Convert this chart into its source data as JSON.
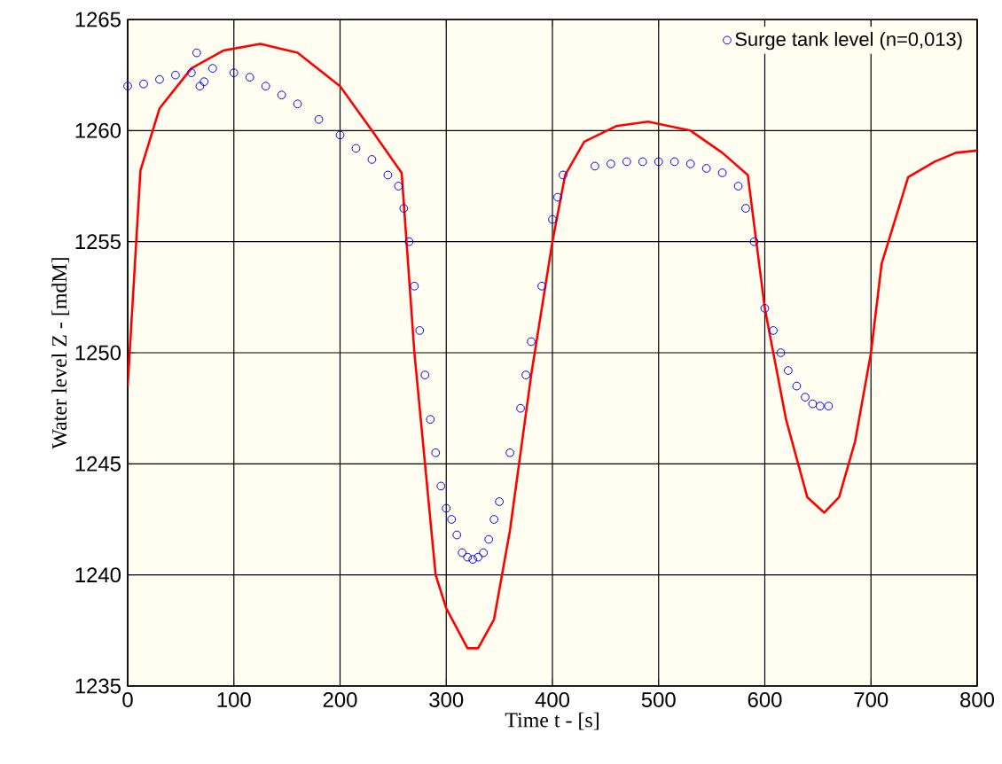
{
  "chart_data": {
    "type": "scatter",
    "xlabel": "Time t - [s]",
    "ylabel": "Water level Z - [mdM]",
    "xlim": [
      0,
      800
    ],
    "ylim": [
      1235,
      1265
    ],
    "xticks": [
      0,
      100,
      200,
      300,
      400,
      500,
      600,
      700,
      800
    ],
    "yticks": [
      1235,
      1240,
      1245,
      1250,
      1255,
      1260,
      1265
    ],
    "grid": true,
    "legend": "top right",
    "series": [
      {
        "type": "line",
        "marker": "none",
        "line_style": "solid",
        "color": "#ff0000",
        "x": [
          0,
          12,
          30,
          60,
          90,
          125,
          160,
          200,
          230,
          258,
          270,
          290,
          300,
          320,
          330,
          345,
          360,
          380,
          400,
          412,
          430,
          460,
          490,
          530,
          560,
          584,
          600,
          620,
          640,
          656,
          670,
          685,
          700,
          710,
          735,
          760,
          780,
          800
        ],
        "values": [
          1248.5,
          1258.2,
          1261,
          1262.8,
          1263.6,
          1263.9,
          1263.5,
          1262,
          1260,
          1258.1,
          1250,
          1240,
          1238.5,
          1236.7,
          1236.7,
          1238,
          1242,
          1249,
          1255,
          1258,
          1259.5,
          1260.2,
          1260.4,
          1260,
          1259,
          1258,
          1252,
          1247,
          1243.5,
          1242.8,
          1243.5,
          1246,
          1250,
          1254,
          1257.9,
          1258.6,
          1259,
          1259.1
        ]
      },
      {
        "marker": "circle",
        "name": "Surge tank level (n=0,013)",
        "color": "#0000ff",
        "x": [
          0,
          15,
          30,
          45,
          60,
          65,
          68,
          72,
          80,
          100,
          115,
          130,
          145,
          160,
          180,
          200,
          215,
          230,
          245,
          255,
          260,
          265,
          270,
          275,
          280,
          285,
          290,
          295,
          300,
          305,
          310,
          315,
          320,
          325,
          330,
          335,
          340,
          345,
          350,
          360,
          370,
          375,
          380,
          390,
          400,
          405,
          410,
          425,
          440,
          455,
          470,
          485,
          500,
          515,
          530,
          545,
          560,
          575,
          582,
          590,
          600,
          608,
          615,
          622,
          630,
          638,
          645,
          652,
          660
        ],
        "values": [
          1262,
          1262.1,
          1262.3,
          1262.5,
          1262.6,
          1263.5,
          1262,
          1262.2,
          1262.8,
          1262.6,
          1262.4,
          1262,
          1261.6,
          1261.2,
          1260.5,
          1259.8,
          1259.2,
          1258.7,
          1258,
          1257.5,
          1256.5,
          1255,
          1253,
          1251,
          1249,
          1247,
          1245.5,
          1244,
          1243,
          1242.5,
          1241.8,
          1241,
          1240.8,
          1240.7,
          1240.8,
          1241,
          1241.6,
          1242.5,
          1243.3,
          1245.5,
          1247.5,
          1249,
          1250.5,
          1253,
          1256,
          1257,
          1258,
          null,
          1258.4,
          1258.5,
          1258.6,
          1258.6,
          1258.6,
          1258.6,
          1258.5,
          1258.3,
          1258.1,
          1257.5,
          1256.5,
          1255,
          1252,
          1251,
          1250,
          1249.2,
          1248.5,
          1248,
          1247.7,
          1247.6,
          1247.6
        ]
      }
    ]
  }
}
